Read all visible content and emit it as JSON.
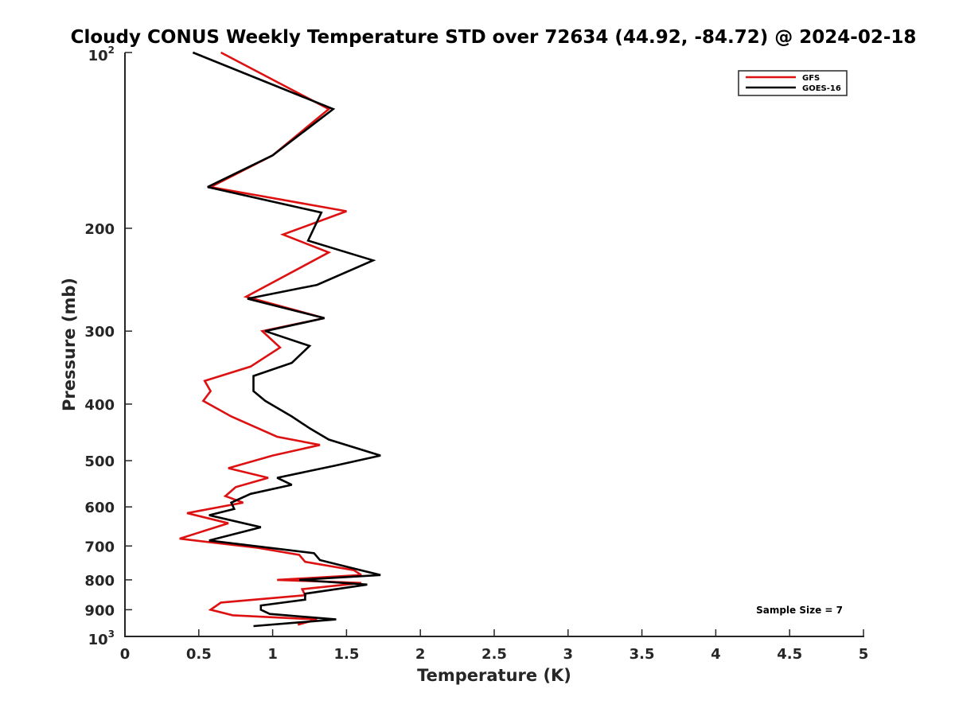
{
  "chart_data": {
    "type": "line",
    "title": "Cloudy CONUS Weekly Temperature STD over 72634 (44.92, -84.72) @ 2024-02-18",
    "xlabel": "Temperature (K)",
    "ylabel": "Pressure (mb)",
    "xlim": [
      0,
      5
    ],
    "ylim": [
      100,
      1000
    ],
    "y_scale": "log",
    "y_reversed": true,
    "x_ticks": [
      0,
      0.5,
      1,
      1.5,
      2,
      2.5,
      3,
      3.5,
      4,
      4.5,
      5
    ],
    "x_tick_labels": [
      "0",
      "0.5",
      "1",
      "1.5",
      "2",
      "2.5",
      "3",
      "3.5",
      "4",
      "4.5",
      "5"
    ],
    "y_ticks": [
      {
        "value": 100,
        "base": "10",
        "exp": "2"
      },
      {
        "value": 200,
        "label": "200"
      },
      {
        "value": 300,
        "label": "300"
      },
      {
        "value": 400,
        "label": "400"
      },
      {
        "value": 500,
        "label": "500"
      },
      {
        "value": 600,
        "label": "600"
      },
      {
        "value": 700,
        "label": "700"
      },
      {
        "value": 800,
        "label": "800"
      },
      {
        "value": 900,
        "label": "900"
      },
      {
        "value": 1000,
        "base": "10",
        "exp": "3"
      }
    ],
    "grid": false,
    "legend_position": "top-right",
    "annotation": "Sample Size = 7",
    "series": [
      {
        "name": "GFS",
        "color": "#dd1111",
        "points": [
          [
            0.65,
            100
          ],
          [
            1.38,
            125
          ],
          [
            1.0,
            150
          ],
          [
            0.58,
            170
          ],
          [
            1.5,
            187
          ],
          [
            1.07,
            205
          ],
          [
            1.38,
            220
          ],
          [
            0.82,
            262
          ],
          [
            1.35,
            285
          ],
          [
            0.93,
            300
          ],
          [
            1.05,
            320
          ],
          [
            0.85,
            345
          ],
          [
            0.54,
            365
          ],
          [
            0.58,
            380
          ],
          [
            0.53,
            395
          ],
          [
            0.72,
            420
          ],
          [
            1.03,
            455
          ],
          [
            1.32,
            470
          ],
          [
            1.0,
            490
          ],
          [
            0.7,
            515
          ],
          [
            0.97,
            535
          ],
          [
            0.75,
            555
          ],
          [
            0.68,
            575
          ],
          [
            0.8,
            590
          ],
          [
            0.42,
            615
          ],
          [
            0.7,
            640
          ],
          [
            0.37,
            680
          ],
          [
            0.9,
            705
          ],
          [
            1.18,
            725
          ],
          [
            1.22,
            745
          ],
          [
            1.55,
            770
          ],
          [
            1.6,
            785
          ],
          [
            1.03,
            800
          ],
          [
            1.6,
            810
          ],
          [
            1.2,
            830
          ],
          [
            1.22,
            850
          ],
          [
            0.65,
            875
          ],
          [
            0.58,
            900
          ],
          [
            0.73,
            920
          ],
          [
            1.3,
            935
          ],
          [
            1.17,
            955
          ]
        ]
      },
      {
        "name": "GOES-16",
        "color": "#000000",
        "points": [
          [
            0.46,
            100
          ],
          [
            1.41,
            125
          ],
          [
            1.0,
            150
          ],
          [
            0.56,
            170
          ],
          [
            1.33,
            188
          ],
          [
            1.24,
            210
          ],
          [
            1.68,
            227
          ],
          [
            1.3,
            250
          ],
          [
            0.83,
            264
          ],
          [
            1.35,
            285
          ],
          [
            0.95,
            300
          ],
          [
            1.25,
            318
          ],
          [
            1.13,
            340
          ],
          [
            0.87,
            358
          ],
          [
            0.87,
            380
          ],
          [
            0.95,
            395
          ],
          [
            1.13,
            420
          ],
          [
            1.25,
            440
          ],
          [
            1.38,
            460
          ],
          [
            1.73,
            490
          ],
          [
            1.42,
            510
          ],
          [
            1.03,
            535
          ],
          [
            1.13,
            550
          ],
          [
            0.85,
            570
          ],
          [
            0.72,
            590
          ],
          [
            0.74,
            605
          ],
          [
            0.57,
            620
          ],
          [
            0.92,
            650
          ],
          [
            0.57,
            685
          ],
          [
            1.28,
            720
          ],
          [
            1.32,
            740
          ],
          [
            1.55,
            765
          ],
          [
            1.73,
            785
          ],
          [
            1.18,
            800
          ],
          [
            1.64,
            815
          ],
          [
            1.22,
            845
          ],
          [
            1.22,
            865
          ],
          [
            0.92,
            885
          ],
          [
            0.92,
            900
          ],
          [
            0.98,
            915
          ],
          [
            1.43,
            935
          ],
          [
            0.87,
            960
          ]
        ]
      }
    ]
  }
}
